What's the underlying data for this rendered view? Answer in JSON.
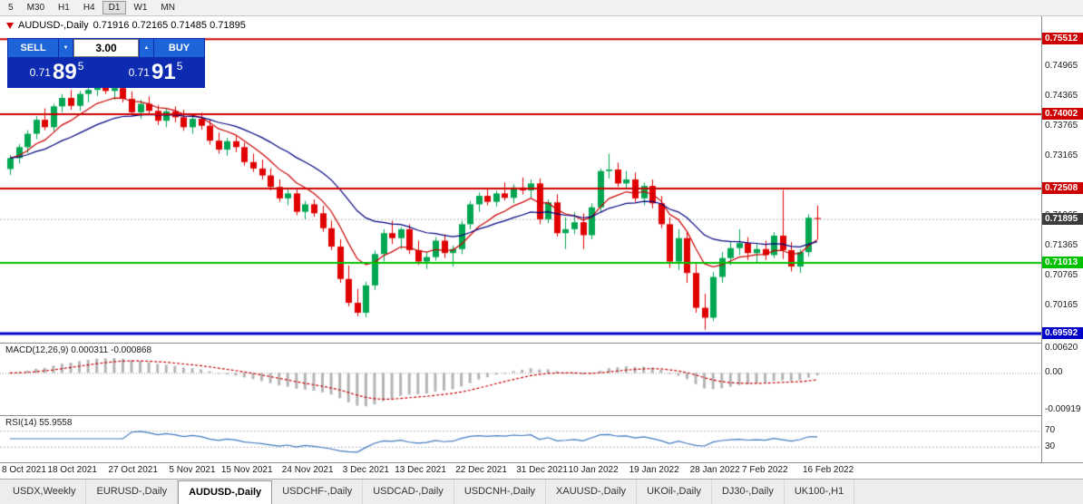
{
  "toolbar": {
    "timeframes": [
      "5",
      "M30",
      "H1",
      "H4",
      "D1",
      "W1",
      "MN"
    ],
    "active_index": 4
  },
  "chart": {
    "symbol_text": "AUDUSD-,Daily",
    "ohlc_text": "0.71916 0.72165 0.71485 0.71895"
  },
  "trade_panel": {
    "sell_label": "SELL",
    "buy_label": "BUY",
    "volume": "3.00",
    "sell_price": {
      "prefix": "0.71",
      "big": "89",
      "sup": "5"
    },
    "buy_price": {
      "prefix": "0.71",
      "big": "91",
      "sup": "5"
    }
  },
  "chart_data": {
    "type": "candlestick",
    "symbol": "AUDUSD-",
    "timeframe": "Daily",
    "ohlc_last": {
      "open": 0.71916,
      "high": 0.72165,
      "low": 0.71485,
      "close": 0.71895
    },
    "up_color": "#00a651",
    "down_color": "#e00000",
    "ma_fast": {
      "period": 8,
      "color": "#cc0000"
    },
    "ma_slow": {
      "period": 20,
      "color": "#000080"
    },
    "candles": [
      [
        0.729,
        0.7318,
        0.7278,
        0.7312
      ],
      [
        0.7312,
        0.734,
        0.7301,
        0.7334
      ],
      [
        0.7334,
        0.7368,
        0.7322,
        0.7361
      ],
      [
        0.7361,
        0.7396,
        0.735,
        0.7389
      ],
      [
        0.7389,
        0.7412,
        0.7368,
        0.7374
      ],
      [
        0.7374,
        0.7421,
        0.7366,
        0.7416
      ],
      [
        0.7416,
        0.7441,
        0.7404,
        0.7433
      ],
      [
        0.7433,
        0.7449,
        0.7409,
        0.7417
      ],
      [
        0.7417,
        0.7447,
        0.7407,
        0.7441
      ],
      [
        0.7441,
        0.7456,
        0.7424,
        0.7449
      ],
      [
        0.7449,
        0.7468,
        0.7437,
        0.7461
      ],
      [
        0.7461,
        0.7473,
        0.7441,
        0.7447
      ],
      [
        0.7447,
        0.7459,
        0.7429,
        0.7453
      ],
      [
        0.7453,
        0.7461,
        0.7424,
        0.7431
      ],
      [
        0.7431,
        0.7446,
        0.7398,
        0.7404
      ],
      [
        0.7404,
        0.7429,
        0.7391,
        0.7421
      ],
      [
        0.7421,
        0.7436,
        0.7399,
        0.7407
      ],
      [
        0.7407,
        0.7419,
        0.7379,
        0.7387
      ],
      [
        0.7387,
        0.7413,
        0.7374,
        0.7406
      ],
      [
        0.7406,
        0.7416,
        0.7384,
        0.7394
      ],
      [
        0.7394,
        0.7409,
        0.7367,
        0.7374
      ],
      [
        0.7374,
        0.7399,
        0.7361,
        0.7391
      ],
      [
        0.7391,
        0.7403,
        0.7369,
        0.7377
      ],
      [
        0.7377,
        0.7389,
        0.7339,
        0.7347
      ],
      [
        0.7347,
        0.7363,
        0.7321,
        0.7329
      ],
      [
        0.7329,
        0.7353,
        0.7317,
        0.7346
      ],
      [
        0.7346,
        0.7356,
        0.7324,
        0.7334
      ],
      [
        0.7334,
        0.7343,
        0.7297,
        0.7304
      ],
      [
        0.7304,
        0.7321,
        0.7284,
        0.7291
      ],
      [
        0.7291,
        0.7309,
        0.7269,
        0.7277
      ],
      [
        0.7277,
        0.7291,
        0.7247,
        0.7254
      ],
      [
        0.7254,
        0.7269,
        0.7224,
        0.7231
      ],
      [
        0.7231,
        0.7249,
        0.7217,
        0.7241
      ],
      [
        0.7241,
        0.7251,
        0.7197,
        0.7204
      ],
      [
        0.7204,
        0.7226,
        0.7189,
        0.7219
      ],
      [
        0.7219,
        0.7229,
        0.7194,
        0.7201
      ],
      [
        0.7201,
        0.7216,
        0.7164,
        0.7171
      ],
      [
        0.7171,
        0.7186,
        0.7127,
        0.7134
      ],
      [
        0.7134,
        0.7149,
        0.7061,
        0.7069
      ],
      [
        0.7069,
        0.7096,
        0.7014,
        0.7021
      ],
      [
        0.7021,
        0.7049,
        0.6994,
        0.7001
      ],
      [
        0.7001,
        0.7063,
        0.6992,
        0.7056
      ],
      [
        0.7056,
        0.7126,
        0.7047,
        0.7119
      ],
      [
        0.7119,
        0.7169,
        0.7104,
        0.7161
      ],
      [
        0.7161,
        0.7186,
        0.7139,
        0.7151
      ],
      [
        0.7151,
        0.7173,
        0.7129,
        0.7169
      ],
      [
        0.7169,
        0.7179,
        0.7119,
        0.7127
      ],
      [
        0.7127,
        0.7146,
        0.7097,
        0.7104
      ],
      [
        0.7104,
        0.7123,
        0.7089,
        0.7113
      ],
      [
        0.7113,
        0.7153,
        0.7106,
        0.7146
      ],
      [
        0.7146,
        0.7159,
        0.7111,
        0.7121
      ],
      [
        0.7121,
        0.7136,
        0.7094,
        0.7129
      ],
      [
        0.7129,
        0.7186,
        0.7119,
        0.7179
      ],
      [
        0.7179,
        0.7226,
        0.7169,
        0.7219
      ],
      [
        0.7219,
        0.7243,
        0.7204,
        0.7236
      ],
      [
        0.7236,
        0.7249,
        0.7217,
        0.7224
      ],
      [
        0.7224,
        0.7246,
        0.7214,
        0.7241
      ],
      [
        0.7241,
        0.7263,
        0.7227,
        0.7232
      ],
      [
        0.7232,
        0.7259,
        0.7221,
        0.7253
      ],
      [
        0.7253,
        0.7273,
        0.7239,
        0.7247
      ],
      [
        0.7247,
        0.7269,
        0.7231,
        0.7261
      ],
      [
        0.7261,
        0.7271,
        0.7179,
        0.7189
      ],
      [
        0.7189,
        0.7229,
        0.7181,
        0.7223
      ],
      [
        0.7223,
        0.7239,
        0.7154,
        0.7161
      ],
      [
        0.7161,
        0.7193,
        0.7129,
        0.7169
      ],
      [
        0.7169,
        0.7203,
        0.7159,
        0.7183
      ],
      [
        0.7183,
        0.7201,
        0.7129,
        0.7157
      ],
      [
        0.7157,
        0.7221,
        0.7149,
        0.7213
      ],
      [
        0.7213,
        0.7291,
        0.7204,
        0.7286
      ],
      [
        0.7286,
        0.7321,
        0.7271,
        0.7289
      ],
      [
        0.7289,
        0.7303,
        0.7254,
        0.7261
      ],
      [
        0.7261,
        0.7286,
        0.7251,
        0.7269
      ],
      [
        0.7269,
        0.7283,
        0.7224,
        0.7231
      ],
      [
        0.7231,
        0.7263,
        0.7217,
        0.7256
      ],
      [
        0.7256,
        0.7269,
        0.7211,
        0.7221
      ],
      [
        0.7221,
        0.7236,
        0.7171,
        0.7179
      ],
      [
        0.7179,
        0.7193,
        0.7091,
        0.7104
      ],
      [
        0.7104,
        0.7169,
        0.7087,
        0.7151
      ],
      [
        0.7151,
        0.7163,
        0.7061,
        0.7081
      ],
      [
        0.7081,
        0.7099,
        0.7001,
        0.7011
      ],
      [
        0.7011,
        0.7039,
        0.6967,
        0.6991
      ],
      [
        0.6991,
        0.7083,
        0.6984,
        0.7073
      ],
      [
        0.7073,
        0.7123,
        0.7061,
        0.7111
      ],
      [
        0.7111,
        0.7143,
        0.7097,
        0.7131
      ],
      [
        0.7131,
        0.7169,
        0.7117,
        0.7141
      ],
      [
        0.7141,
        0.7153,
        0.7107,
        0.7121
      ],
      [
        0.7121,
        0.7139,
        0.7101,
        0.7129
      ],
      [
        0.7129,
        0.7146,
        0.7107,
        0.7117
      ],
      [
        0.7117,
        0.7163,
        0.7111,
        0.7156
      ],
      [
        0.7156,
        0.7248,
        0.7109,
        0.7127
      ],
      [
        0.7127,
        0.7143,
        0.7084,
        0.7094
      ],
      [
        0.7094,
        0.7129,
        0.7081,
        0.7123
      ],
      [
        0.7123,
        0.7199,
        0.7114,
        0.7192
      ],
      [
        0.71916,
        0.72165,
        0.71485,
        0.71895
      ]
    ],
    "x_ticks": [
      {
        "i": 0,
        "label": "8 Oct 2021"
      },
      {
        "i": 6,
        "label": "18 Oct 2021"
      },
      {
        "i": 13,
        "label": "27 Oct 2021"
      },
      {
        "i": 20,
        "label": "5 Nov 2021"
      },
      {
        "i": 26,
        "label": "15 Nov 2021"
      },
      {
        "i": 33,
        "label": "24 Nov 2021"
      },
      {
        "i": 40,
        "label": "3 Dec 2021"
      },
      {
        "i": 46,
        "label": "13 Dec 2021"
      },
      {
        "i": 53,
        "label": "22 Dec 2021"
      },
      {
        "i": 60,
        "label": "31 Dec 2021"
      },
      {
        "i": 66,
        "label": "10 Jan 2022"
      },
      {
        "i": 73,
        "label": "19 Jan 2022"
      },
      {
        "i": 80,
        "label": "28 Jan 2022"
      },
      {
        "i": 86,
        "label": "7 Feb 2022"
      },
      {
        "i": 93,
        "label": "16 Feb 2022"
      }
    ],
    "y_ticks": [
      {
        "label": "0.74965",
        "v": 0.74965
      },
      {
        "label": "0.74365",
        "v": 0.74365
      },
      {
        "label": "0.73765",
        "v": 0.73765
      },
      {
        "label": "0.73165",
        "v": 0.73165
      },
      {
        "label": "0.71965",
        "v": 0.71965
      },
      {
        "label": "0.71365",
        "v": 0.71365
      },
      {
        "label": "0.70765",
        "v": 0.70765
      },
      {
        "label": "0.70165",
        "v": 0.70165
      }
    ],
    "hlines": [
      {
        "label": "0.75512",
        "v": 0.75512,
        "color": "#cc0000",
        "width": 2
      },
      {
        "label": "0.74002",
        "v": 0.74002,
        "color": "#cc0000",
        "width": 2
      },
      {
        "label": "0.72508",
        "v": 0.72508,
        "color": "#cc0000",
        "width": 2
      },
      {
        "label": "0.71013",
        "v": 0.71013,
        "color": "#00c000",
        "width": 2
      },
      {
        "label": "0.69592",
        "v": 0.69592,
        "color": "#0000c8",
        "width": 3
      }
    ],
    "current_price": {
      "label": "0.71895",
      "v": 0.71895,
      "box_color": "#3c3c3c"
    },
    "indicators": {
      "macd": {
        "title": "MACD(12,26,9)",
        "values_text": "0.000311 -0.000868",
        "fast": 12,
        "slow": 26,
        "signal": 9,
        "hist_color": "#b4b4b4",
        "signal_color": "#c80000",
        "axis": [
          {
            "label": "0.00620",
            "v": 0.0062
          },
          {
            "label": "0.00",
            "v": 0
          },
          {
            "label": "-0.00919",
            "v": -0.00919
          }
        ]
      },
      "rsi": {
        "title": "RSI(14)",
        "value_text": "55.9558",
        "period": 14,
        "levels": [
          70,
          30
        ],
        "line_color": "#4079c1",
        "level_color": "#b9b9b9"
      }
    }
  },
  "tabs": {
    "items": [
      "USDX,Weekly",
      "EURUSD-,Daily",
      "AUDUSD-,Daily",
      "USDCHF-,Daily",
      "USDCAD-,Daily",
      "USDCNH-,Daily",
      "XAUUSD-,Daily",
      "UKOil-,Daily",
      "DJ30-,Daily",
      "UK100-,H1"
    ],
    "active_index": 2
  }
}
